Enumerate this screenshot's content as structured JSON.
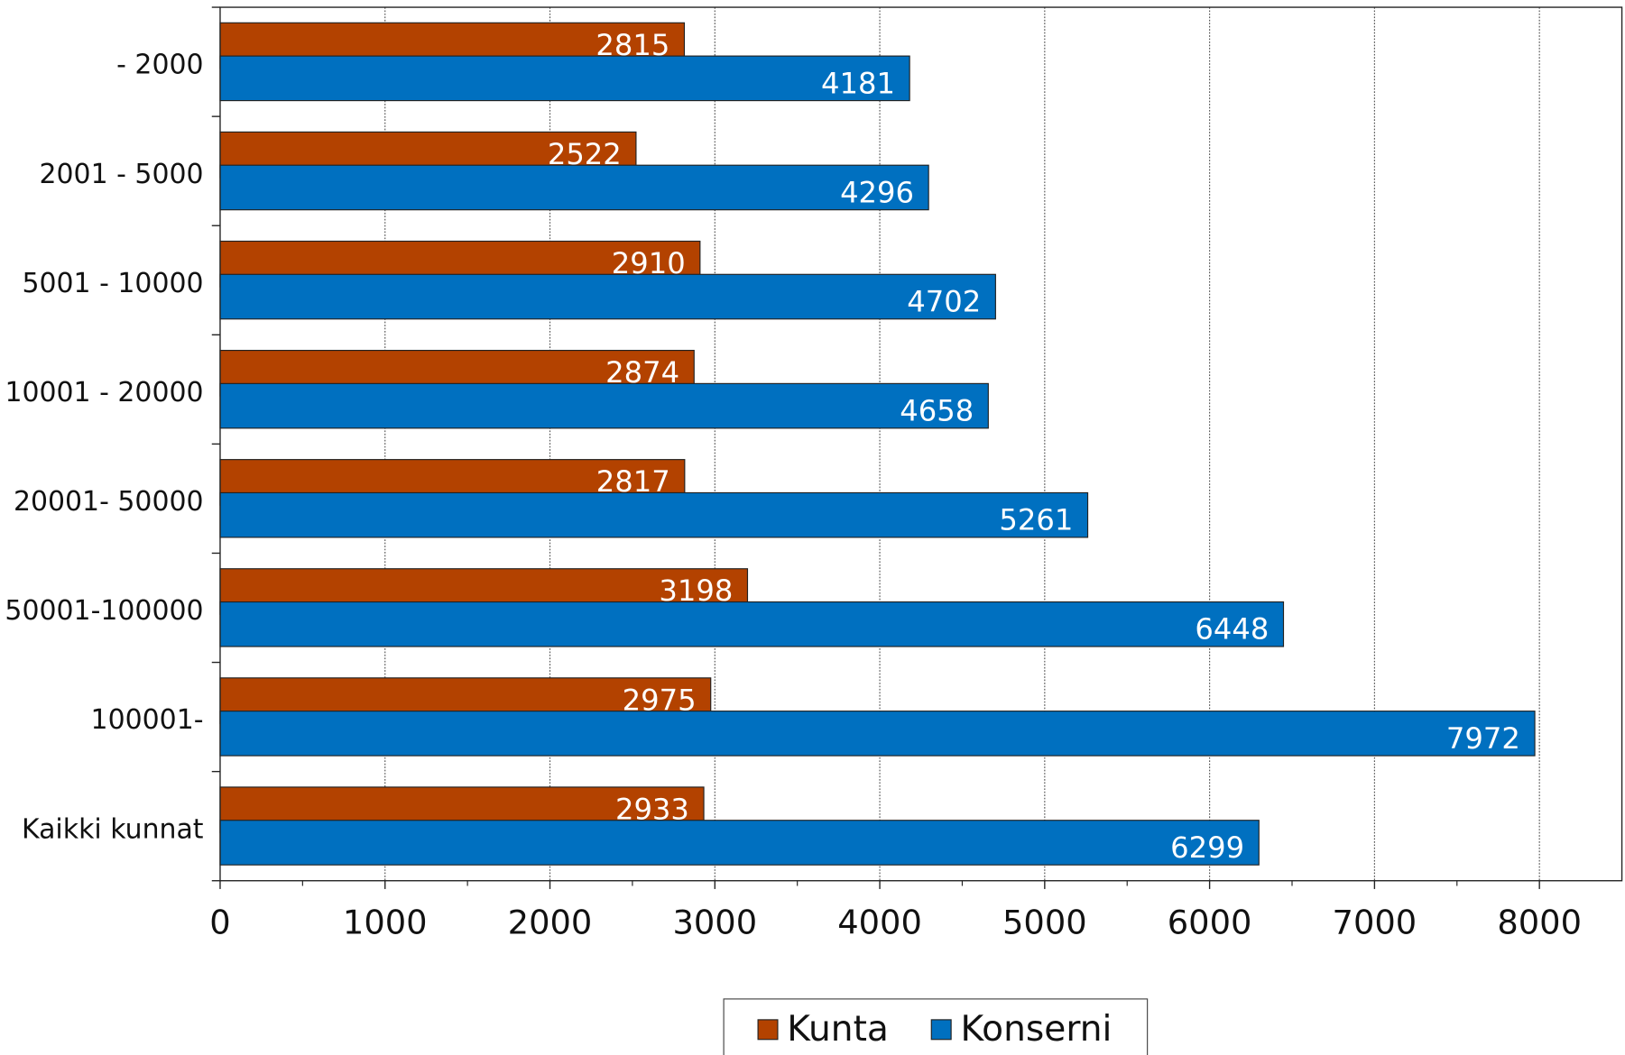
{
  "chart_data": {
    "type": "hbar",
    "categories": [
      "- 2000",
      "2001 - 5000",
      "5001 - 10000",
      "10001 - 20000",
      "20001- 50000",
      "50001-100000",
      "100001-",
      "Kaikki kunnat"
    ],
    "series": [
      {
        "name": "Kunta",
        "color": "#b34200",
        "values": [
          2815,
          2522,
          2910,
          2874,
          2817,
          3198,
          2975,
          2933
        ]
      },
      {
        "name": "Konserni",
        "color": "#0070c0",
        "values": [
          4181,
          4296,
          4702,
          4658,
          5261,
          6448,
          7972,
          6299
        ]
      }
    ],
    "xlim": [
      0,
      8500
    ],
    "xticks": [
      0,
      1000,
      2000,
      3000,
      4000,
      5000,
      6000,
      7000,
      8000
    ],
    "grid": true,
    "legend": "bottom"
  }
}
